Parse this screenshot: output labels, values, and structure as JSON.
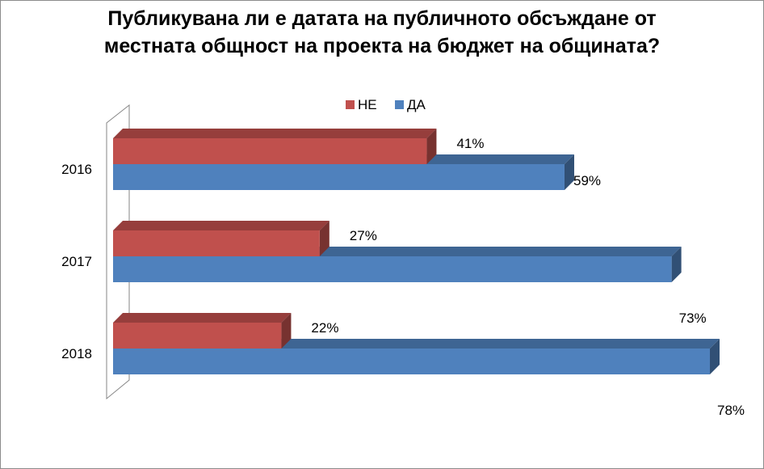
{
  "chart_data": {
    "type": "bar",
    "orientation": "horizontal",
    "title_lines": [
      "Публикувана ли е датата на публичното обсъждане от",
      "местната общност на проекта на бюджет на общината?"
    ],
    "categories": [
      "2016",
      "2017",
      "2018"
    ],
    "series": [
      {
        "name": "НЕ",
        "values": [
          41,
          27,
          22
        ],
        "color": "#c0504d"
      },
      {
        "name": "ДА",
        "values": [
          59,
          73,
          78
        ],
        "color": "#4f81bd"
      }
    ],
    "value_suffix": "%",
    "xlim": [
      0,
      78
    ],
    "grid": false,
    "legend_position": "top",
    "style": "3d"
  }
}
